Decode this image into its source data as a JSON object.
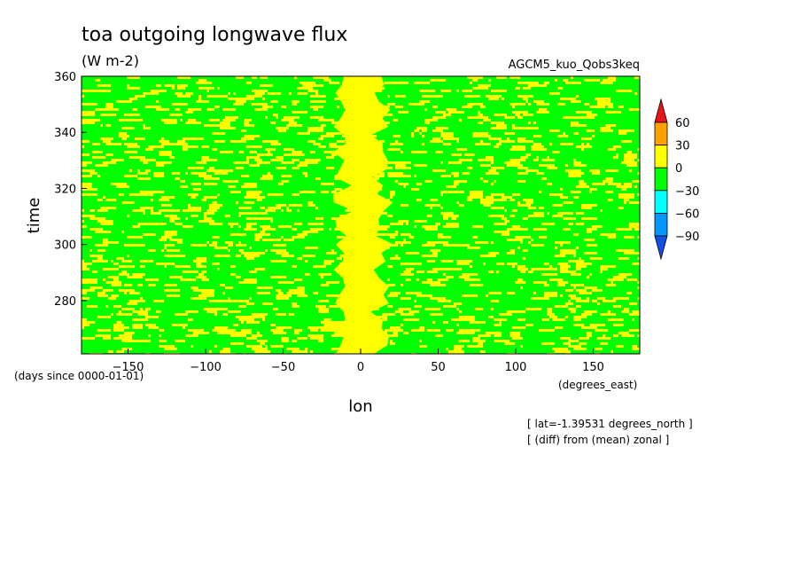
{
  "chart_data": {
    "type": "heatmap",
    "title": "toa outgoing longwave flux",
    "units": "(W m-2)",
    "model": "AGCM5_kuo_Qobs3keq",
    "xlabel": "lon",
    "ylabel": "time",
    "x_units": "(degrees_east)",
    "y_units": "(days since 0000-01-01)",
    "xlim": [
      -180,
      180
    ],
    "ylim": [
      261,
      360
    ],
    "x_ticks": [
      -150,
      -100,
      -50,
      0,
      50,
      100,
      150
    ],
    "y_ticks": [
      280,
      300,
      320,
      340,
      360
    ],
    "notes": [
      "[ lat=-1.39531 degrees_north ]",
      "[ (diff) from (mean) zonal ]"
    ],
    "colorbar": {
      "labels": [
        "60",
        "30",
        "0",
        "-30",
        "-60",
        "-90"
      ],
      "levels": [
        {
          "range": "> 60",
          "color": "#e8151a"
        },
        {
          "range": "30 to 60",
          "color": "#ff9f00"
        },
        {
          "range": "0 to 30",
          "color": "#ffff00"
        },
        {
          "range": "-30 to 0",
          "color": "#00ff00"
        },
        {
          "range": "-60 to -30",
          "color": "#00ffff"
        },
        {
          "range": "-90 to -60",
          "color": "#0096ff"
        },
        {
          "range": "< -90",
          "color": "#1450e6"
        }
      ]
    },
    "field_colors": {
      "positive": "#ffff00",
      "negative": "#00ff00"
    },
    "feature": "persistent positive anomaly band centered near lon 0 spanning roughly -15 to 15 degrees_east across all times"
  }
}
